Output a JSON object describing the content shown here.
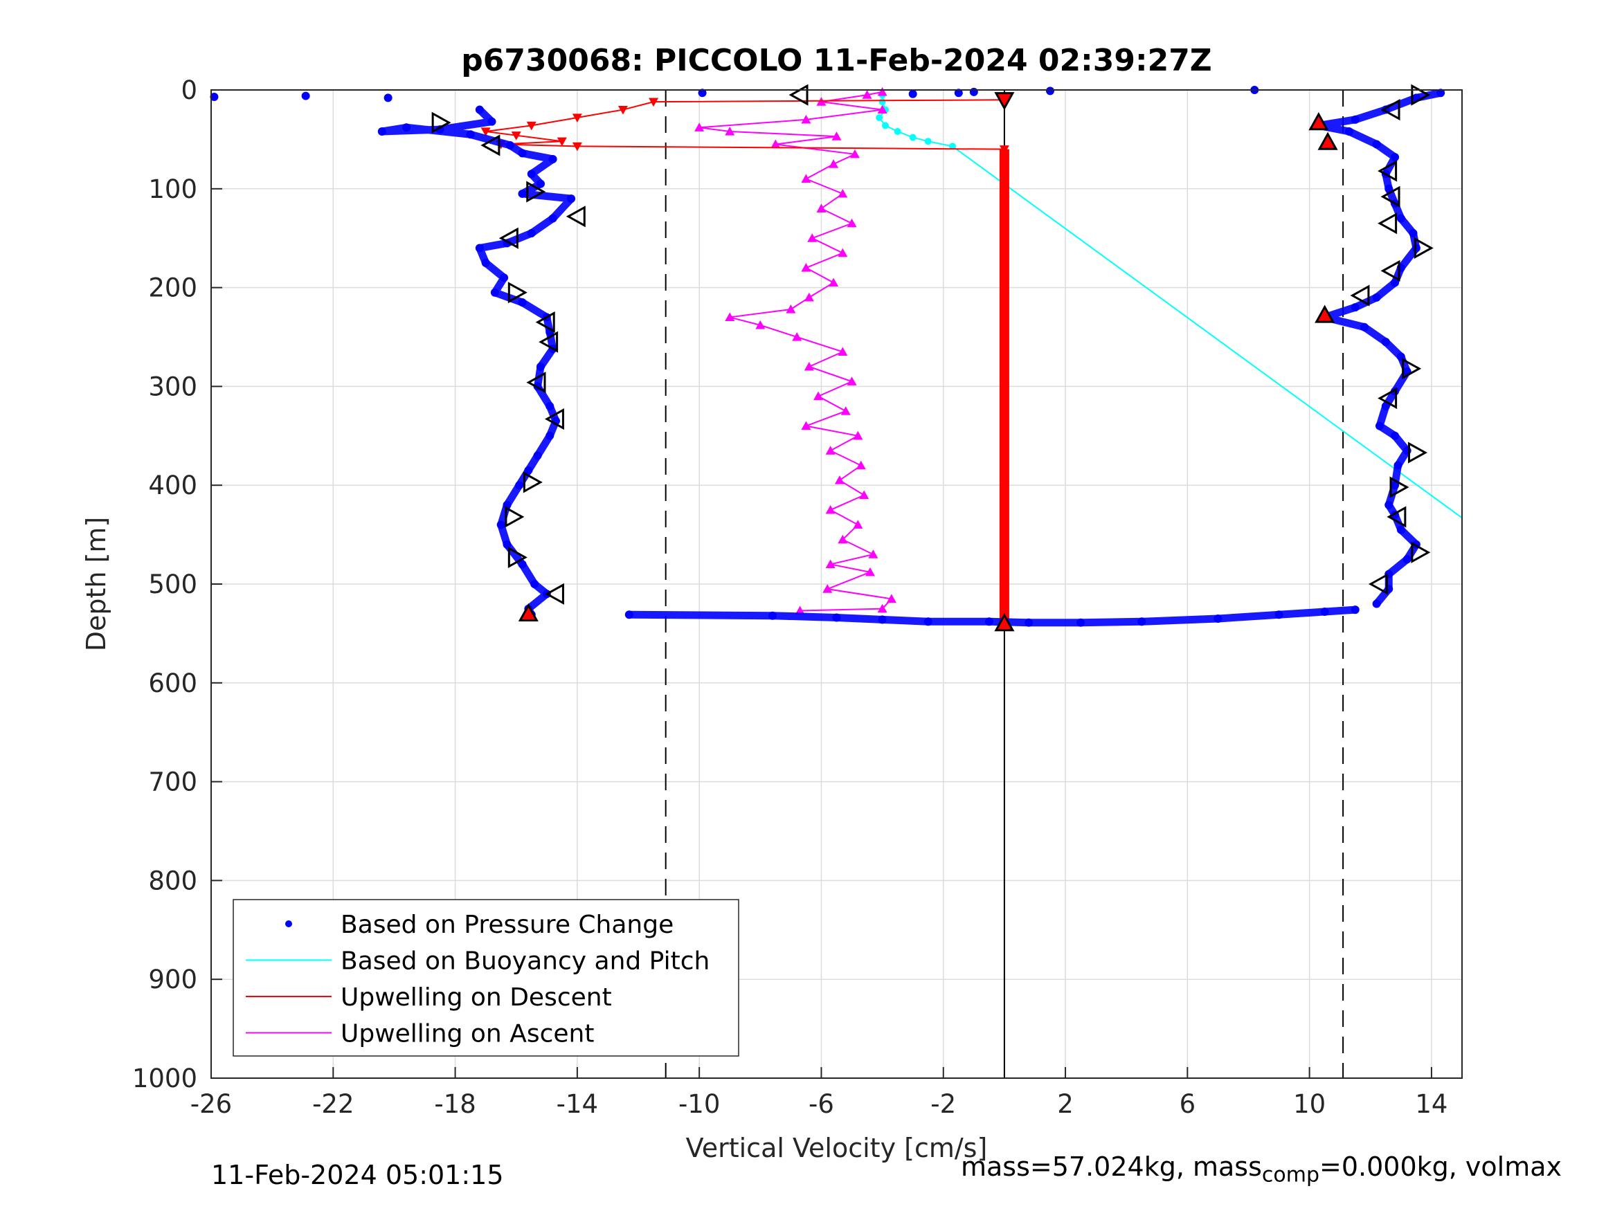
{
  "footer": {
    "timestamp": "11-Feb-2024 05:01:15",
    "mass_prefix": "mass=57.024kg, mass",
    "mass_sub": "comp",
    "mass_suffix": "=0.000kg, volmax"
  },
  "legend": {
    "items": [
      {
        "label": "Based on Pressure Change",
        "color": "#0000ff",
        "style": "dot"
      },
      {
        "label": "Based on Buoyancy and Pitch",
        "color": "#00ffff",
        "style": "line"
      },
      {
        "label": "Upwelling on Descent",
        "color": "#ff0000",
        "style": "line"
      },
      {
        "label": "Upwelling on Ascent",
        "color": "#ff00ff",
        "style": "line"
      }
    ]
  },
  "chart_data": {
    "type": "scatter",
    "title": "p6730068: PICCOLO 11-Feb-2024 02:39:27Z",
    "xlabel": "Vertical Velocity [cm/s]",
    "ylabel": "Depth [m]",
    "xlim": [
      -26,
      15
    ],
    "ylim": [
      0,
      1000
    ],
    "y_reversed": true,
    "grid": true,
    "legend_position": "bottom-left",
    "xticks": [
      -26,
      -22,
      -18,
      -14,
      -10,
      -6,
      -2,
      2,
      6,
      10,
      14
    ],
    "yticks": [
      0,
      100,
      200,
      300,
      400,
      500,
      600,
      700,
      800,
      900,
      1000
    ],
    "xtick_labels": [
      "-26",
      "-22",
      "-18",
      "-14",
      "-10",
      "-6",
      "-2",
      "2",
      "6",
      "10",
      "14"
    ],
    "ytick_labels": [
      "0",
      "100",
      "200",
      "300",
      "400",
      "500",
      "600",
      "700",
      "800",
      "900",
      "1000"
    ],
    "reference_lines": [
      {
        "x": -11.1,
        "style": "dashed"
      },
      {
        "x": 11.1,
        "style": "dashed"
      },
      {
        "x": 0,
        "style": "solid"
      }
    ],
    "series": [
      {
        "name": "Based on Pressure Change",
        "color": "#0000ff",
        "marker": "dot",
        "profiles": [
          {
            "part": "descent",
            "points": [
              [
                -17.2,
                20
              ],
              [
                -16.8,
                32
              ],
              [
                -18.5,
                40
              ],
              [
                -20.4,
                42
              ],
              [
                -19.6,
                38
              ],
              [
                -17.5,
                45
              ],
              [
                -16.2,
                56
              ],
              [
                -15.8,
                64
              ],
              [
                -14.8,
                70
              ],
              [
                -15.5,
                85
              ],
              [
                -15.2,
                95
              ],
              [
                -15.8,
                105
              ],
              [
                -14.2,
                110
              ],
              [
                -14.8,
                130
              ],
              [
                -15.5,
                145
              ],
              [
                -16.3,
                155
              ],
              [
                -17.2,
                160
              ],
              [
                -17.0,
                175
              ],
              [
                -16.4,
                190
              ],
              [
                -16.7,
                205
              ],
              [
                -15.8,
                215
              ],
              [
                -15.0,
                230
              ],
              [
                -14.9,
                245
              ],
              [
                -14.8,
                262
              ],
              [
                -15.2,
                280
              ],
              [
                -15.3,
                300
              ],
              [
                -14.9,
                320
              ],
              [
                -14.7,
                335
              ],
              [
                -14.9,
                350
              ],
              [
                -15.3,
                370
              ],
              [
                -15.6,
                385
              ],
              [
                -15.9,
                400
              ],
              [
                -16.3,
                420
              ],
              [
                -16.5,
                440
              ],
              [
                -16.3,
                460
              ],
              [
                -15.8,
                480
              ],
              [
                -15.4,
                500
              ],
              [
                -15.0,
                510
              ],
              [
                -15.6,
                525
              ],
              [
                -15.5,
                531
              ]
            ]
          },
          {
            "part": "bottom",
            "points": [
              [
                -12.3,
                531
              ],
              [
                -7.6,
                532
              ],
              [
                -5.5,
                534
              ],
              [
                -4.0,
                536
              ],
              [
                -2.5,
                538
              ],
              [
                -0.5,
                538
              ],
              [
                0.8,
                539
              ],
              [
                2.5,
                539
              ],
              [
                4.5,
                538
              ],
              [
                7.0,
                535
              ],
              [
                9.0,
                531
              ],
              [
                10.5,
                528
              ],
              [
                11.5,
                526
              ]
            ]
          },
          {
            "part": "ascent",
            "points": [
              [
                12.2,
                520
              ],
              [
                12.6,
                505
              ],
              [
                12.6,
                490
              ],
              [
                13.2,
                475
              ],
              [
                13.5,
                460
              ],
              [
                13.0,
                445
              ],
              [
                12.8,
                430
              ],
              [
                12.6,
                420
              ],
              [
                12.8,
                400
              ],
              [
                12.9,
                380
              ],
              [
                13.2,
                365
              ],
              [
                12.8,
                350
              ],
              [
                12.3,
                340
              ],
              [
                12.5,
                320
              ],
              [
                12.8,
                305
              ],
              [
                13.2,
                285
              ],
              [
                13.0,
                270
              ],
              [
                12.5,
                255
              ],
              [
                11.8,
                240
              ],
              [
                10.5,
                230
              ],
              [
                11.5,
                220
              ],
              [
                12.2,
                210
              ],
              [
                12.8,
                195
              ],
              [
                13.0,
                180
              ],
              [
                13.5,
                160
              ],
              [
                13.4,
                145
              ],
              [
                13.0,
                130
              ],
              [
                12.8,
                115
              ],
              [
                12.6,
                100
              ],
              [
                12.5,
                85
              ],
              [
                12.8,
                68
              ],
              [
                12.2,
                55
              ],
              [
                11.3,
                42
              ],
              [
                10.3,
                36
              ],
              [
                11.5,
                30
              ],
              [
                12.5,
                20
              ],
              [
                13.5,
                8
              ],
              [
                14.3,
                3
              ]
            ]
          },
          {
            "part": "surface",
            "points": [
              [
                -25.9,
                7
              ],
              [
                -22.9,
                6
              ],
              [
                -20.2,
                8
              ],
              [
                -9.9,
                3
              ],
              [
                -3.0,
                4
              ],
              [
                -1.5,
                3
              ],
              [
                -1.0,
                2
              ],
              [
                1.5,
                1
              ],
              [
                8.2,
                0
              ]
            ]
          }
        ]
      },
      {
        "name": "Based on Buoyancy and Pitch",
        "color": "#00ffff",
        "marker": "line",
        "points": [
          [
            -4.0,
            5
          ],
          [
            -4.0,
            12
          ],
          [
            -3.9,
            20
          ],
          [
            -4.1,
            28
          ],
          [
            -3.9,
            36
          ],
          [
            -3.5,
            42
          ],
          [
            -3.0,
            48
          ],
          [
            -2.5,
            52
          ],
          [
            -1.7,
            57
          ],
          [
            15.0,
            433
          ]
        ]
      },
      {
        "name": "Upwelling on Descent",
        "color": "#ff0000",
        "marker": "triangle-down",
        "points": [
          [
            0,
            10
          ],
          [
            -11.5,
            12
          ],
          [
            -12.5,
            20
          ],
          [
            -14.0,
            28
          ],
          [
            -15.5,
            36
          ],
          [
            -17.0,
            42
          ],
          [
            -16.0,
            46
          ],
          [
            -14.5,
            52
          ],
          [
            -16.5,
            55
          ],
          [
            -14.0,
            57
          ],
          [
            0,
            60
          ],
          [
            0,
            100
          ],
          [
            0,
            200
          ],
          [
            0,
            300
          ],
          [
            0,
            400
          ],
          [
            0,
            500
          ],
          [
            0,
            540
          ]
        ]
      },
      {
        "name": "Upwelling on Ascent",
        "color": "#ff00ff",
        "marker": "triangle-up",
        "points": [
          [
            -6.7,
            527
          ],
          [
            -4.0,
            525
          ],
          [
            -3.7,
            515
          ],
          [
            -5.8,
            505
          ],
          [
            -4.4,
            488
          ],
          [
            -5.7,
            480
          ],
          [
            -4.3,
            470
          ],
          [
            -5.3,
            455
          ],
          [
            -4.8,
            440
          ],
          [
            -5.7,
            425
          ],
          [
            -4.6,
            410
          ],
          [
            -5.4,
            395
          ],
          [
            -4.7,
            380
          ],
          [
            -5.7,
            365
          ],
          [
            -4.8,
            350
          ],
          [
            -6.5,
            340
          ],
          [
            -5.2,
            325
          ],
          [
            -6.1,
            310
          ],
          [
            -5.0,
            295
          ],
          [
            -6.4,
            280
          ],
          [
            -5.3,
            265
          ],
          [
            -6.8,
            250
          ],
          [
            -8.0,
            238
          ],
          [
            -9.0,
            230
          ],
          [
            -7.0,
            222
          ],
          [
            -6.4,
            210
          ],
          [
            -5.6,
            195
          ],
          [
            -6.5,
            180
          ],
          [
            -5.3,
            165
          ],
          [
            -6.3,
            150
          ],
          [
            -5.0,
            135
          ],
          [
            -6.0,
            120
          ],
          [
            -5.3,
            105
          ],
          [
            -6.5,
            90
          ],
          [
            -5.6,
            75
          ],
          [
            -4.9,
            65
          ],
          [
            -7.5,
            55
          ],
          [
            -5.5,
            47
          ],
          [
            -9.0,
            42
          ],
          [
            -10.0,
            38
          ],
          [
            -6.5,
            30
          ],
          [
            -4.0,
            20
          ],
          [
            -6.0,
            12
          ],
          [
            -4.5,
            5
          ],
          [
            -4.0,
            2
          ]
        ]
      }
    ],
    "markers": {
      "open_triangles": {
        "color": "#000000",
        "points": [
          [
            -18.5,
            33,
            "right"
          ],
          [
            -16.8,
            56,
            "left"
          ],
          [
            -15.4,
            103,
            "right"
          ],
          [
            -14.0,
            128,
            "left"
          ],
          [
            -16.2,
            150,
            "left"
          ],
          [
            -16.0,
            205,
            "right"
          ],
          [
            -15.0,
            235,
            "left"
          ],
          [
            -14.9,
            255,
            "left"
          ],
          [
            -15.3,
            296,
            "left"
          ],
          [
            -14.7,
            333,
            "left"
          ],
          [
            -15.5,
            397,
            "right"
          ],
          [
            -16.1,
            432,
            "right"
          ],
          [
            -16.0,
            473,
            "right"
          ],
          [
            -14.7,
            510,
            "left"
          ],
          [
            -6.7,
            5,
            "left"
          ],
          [
            13.6,
            5,
            "right"
          ],
          [
            12.7,
            20,
            "left"
          ],
          [
            12.6,
            82,
            "left"
          ],
          [
            12.7,
            108,
            "left"
          ],
          [
            12.6,
            135,
            "left"
          ],
          [
            13.7,
            160,
            "right"
          ],
          [
            12.7,
            183,
            "left"
          ],
          [
            11.7,
            208,
            "left"
          ],
          [
            13.3,
            282,
            "right"
          ],
          [
            12.6,
            312,
            "left"
          ],
          [
            13.5,
            367,
            "right"
          ],
          [
            12.9,
            402,
            "right"
          ],
          [
            12.9,
            432,
            "left"
          ],
          [
            13.6,
            468,
            "right"
          ],
          [
            12.3,
            500,
            "left"
          ]
        ]
      },
      "filled_red": {
        "color": "#ff0000",
        "points": [
          [
            0,
            10,
            "down"
          ],
          [
            -15.6,
            530,
            "up"
          ],
          [
            0,
            540,
            "up"
          ],
          [
            10.3,
            33,
            "up"
          ],
          [
            10.6,
            53,
            "up"
          ],
          [
            10.5,
            228,
            "up"
          ]
        ]
      }
    }
  }
}
